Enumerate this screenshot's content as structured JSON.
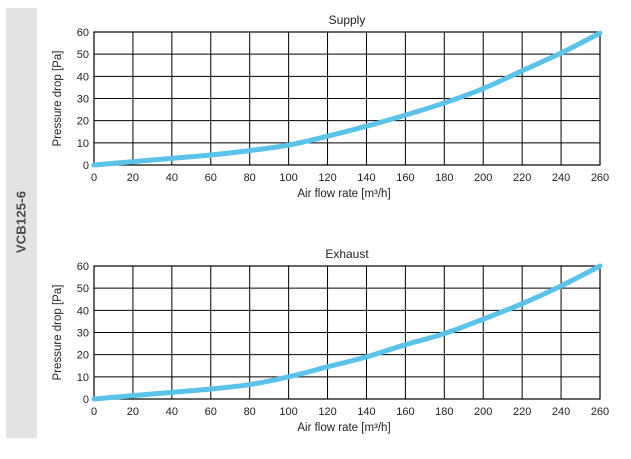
{
  "side_label": "VCB125-6",
  "chart_data": [
    {
      "type": "line",
      "title": "Supply",
      "xlabel": "Air flow rate [m³/h]",
      "ylabel": "Pressure drop [Pa]",
      "xlim": [
        0,
        260
      ],
      "ylim": [
        0,
        60
      ],
      "xticks": [
        0,
        20,
        40,
        60,
        80,
        100,
        120,
        140,
        160,
        180,
        200,
        220,
        240,
        260
      ],
      "yticks": [
        0,
        10,
        20,
        30,
        40,
        50,
        60
      ],
      "grid": true,
      "series_color": "#5bc2ea",
      "series": [
        {
          "x": [
            0,
            20,
            40,
            60,
            80,
            100,
            120,
            140,
            160,
            180,
            200,
            220,
            240,
            260
          ],
          "y": [
            0,
            1.5,
            3,
            4.5,
            6.5,
            9,
            13,
            17.5,
            22.5,
            28,
            34.5,
            42.5,
            50.5,
            59.5
          ]
        }
      ]
    },
    {
      "type": "line",
      "title": "Exhaust",
      "xlabel": "Air flow rate [m³/h]",
      "ylabel": "Pressure drop [Pa]",
      "xlim": [
        0,
        260
      ],
      "ylim": [
        0,
        60
      ],
      "xticks": [
        0,
        20,
        40,
        60,
        80,
        100,
        120,
        140,
        160,
        180,
        200,
        220,
        240,
        260
      ],
      "yticks": [
        0,
        10,
        20,
        30,
        40,
        50,
        60
      ],
      "grid": true,
      "series_color": "#5bc2ea",
      "series": [
        {
          "x": [
            0,
            20,
            40,
            60,
            80,
            100,
            120,
            140,
            160,
            180,
            200,
            220,
            240,
            260
          ],
          "y": [
            0,
            1.5,
            3,
            4.5,
            6.5,
            10,
            14.5,
            19,
            24.5,
            29.5,
            36,
            43,
            51,
            60
          ]
        }
      ]
    }
  ]
}
